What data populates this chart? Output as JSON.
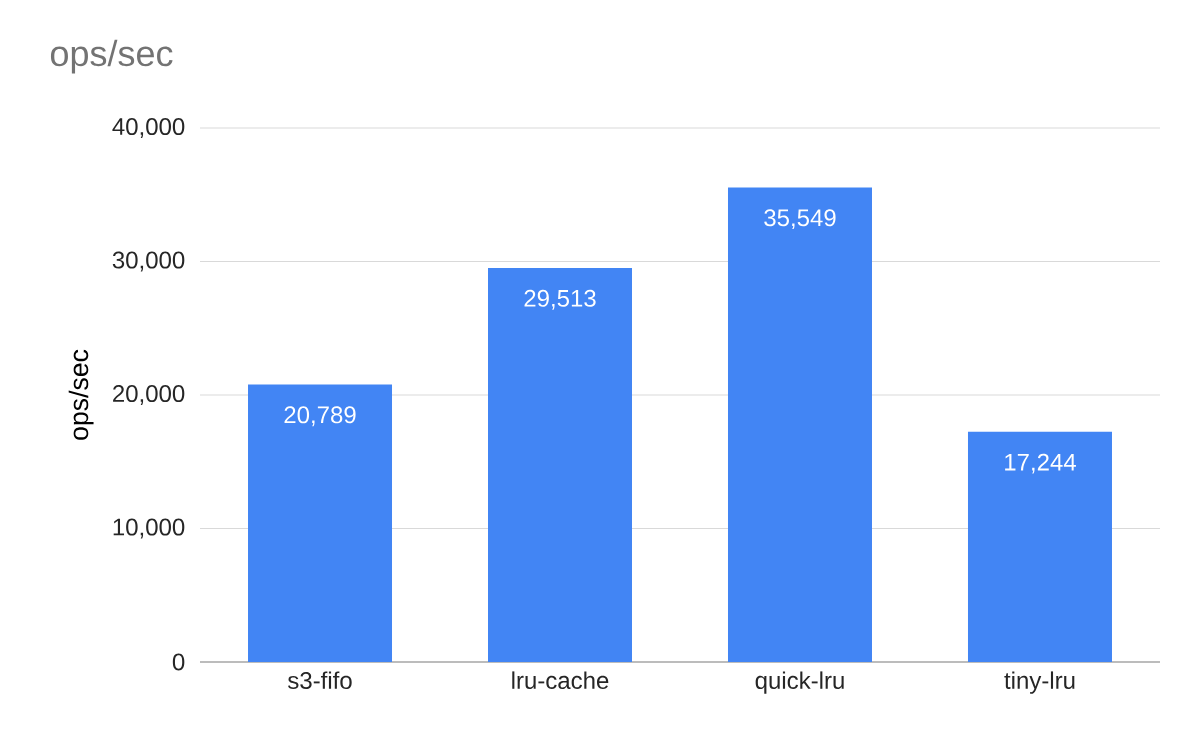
{
  "chart_data": {
    "type": "bar",
    "title": "ops/sec",
    "ylabel": "ops/sec",
    "categories": [
      "s3-fifo",
      "lru-cache",
      "quick-lru",
      "tiny-lru"
    ],
    "values": [
      20789,
      29513,
      35549,
      17244
    ],
    "value_labels": [
      "20,789",
      "29,513",
      "35,549",
      "17,244"
    ],
    "color": "#4285f4",
    "ylim": [
      0,
      40000
    ],
    "yticks": [
      {
        "value": 0,
        "label": "0"
      },
      {
        "value": 10000,
        "label": "10,000"
      },
      {
        "value": 20000,
        "label": "20,000"
      },
      {
        "value": 30000,
        "label": "30,000"
      },
      {
        "value": 40000,
        "label": "40,000"
      }
    ],
    "grid": "y"
  }
}
